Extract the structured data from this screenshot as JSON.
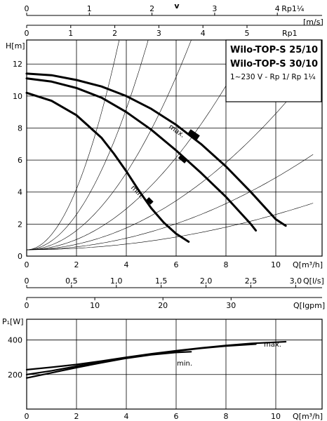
{
  "top_scales": {
    "v_title": "v",
    "rp114": {
      "label": "Rp1¼",
      "ticks": [
        "0",
        "1",
        "2",
        "3",
        "4"
      ],
      "values": [
        0,
        1,
        2,
        3,
        4
      ]
    },
    "rp1": {
      "label": "Rp1",
      "ticks": [
        "0",
        "1",
        "2",
        "3",
        "4",
        "5"
      ],
      "values": [
        0,
        1,
        2,
        3,
        4,
        5
      ]
    },
    "unit": "[m/s]"
  },
  "legend_box": {
    "line1": "Wilo-TOP-S 25/10",
    "line2": "Wilo-TOP-S 30/10",
    "line3": "1~230 V - Rp 1/ Rp 1¼"
  },
  "chart_data": [
    {
      "type": "line",
      "title": "",
      "xlabel": "Q[m³/h]",
      "ylabel": "H[m]",
      "xlim": [
        0,
        11.5
      ],
      "ylim": [
        0,
        13.5
      ],
      "x_ticks": [
        0,
        2,
        4,
        6,
        8,
        10
      ],
      "x_tick_labels": [
        "0",
        "2",
        "4",
        "6",
        "8",
        "10"
      ],
      "y_ticks": [
        0,
        2,
        4,
        6,
        8,
        10,
        12
      ],
      "y_tick_labels": [
        "0",
        "2",
        "4",
        "6",
        "8",
        "10",
        "12"
      ],
      "grid": true,
      "series": [
        {
          "name": "max.",
          "x": [
            0,
            1,
            2,
            3,
            4,
            5,
            6,
            7,
            8,
            9,
            10,
            10.4
          ],
          "y": [
            11.4,
            11.3,
            11.0,
            10.6,
            10.0,
            9.2,
            8.2,
            7.0,
            5.6,
            4.0,
            2.3,
            1.9
          ]
        },
        {
          "name": "",
          "x": [
            0,
            1,
            2,
            3,
            4,
            5,
            6,
            7,
            8,
            9,
            9.2
          ],
          "y": [
            11.1,
            10.9,
            10.5,
            9.9,
            9.0,
            7.9,
            6.6,
            5.2,
            3.7,
            2.0,
            1.6
          ]
        },
        {
          "name": "min.",
          "x": [
            0,
            1,
            2,
            3,
            3.5,
            4,
            4.5,
            5,
            5.5,
            6,
            6.5
          ],
          "y": [
            10.2,
            9.7,
            8.8,
            7.4,
            6.4,
            5.3,
            4.1,
            3.0,
            2.1,
            1.4,
            0.9
          ]
        }
      ],
      "middle_scales": {
        "ls": {
          "unit": "Q[l/s]",
          "ticks": [
            "0",
            "0,5",
            "1,0",
            "1,5",
            "2,0",
            "2,5",
            "3,0"
          ],
          "values": [
            0,
            0.5,
            1.0,
            1.5,
            2.0,
            2.5,
            3.0
          ]
        },
        "igpm": {
          "unit": "Q[Igpm]",
          "ticks": [
            "0",
            "10",
            "20",
            "30"
          ],
          "values": [
            0,
            10,
            20,
            30
          ]
        }
      }
    },
    {
      "type": "line",
      "title": "",
      "xlabel": "Q[m³/h]",
      "ylabel": "P₁[W]",
      "xlim": [
        0,
        11.5
      ],
      "ylim": [
        0,
        520
      ],
      "x_ticks": [
        0,
        2,
        4,
        6,
        8,
        10
      ],
      "x_tick_labels": [
        "0",
        "2",
        "4",
        "6",
        "8",
        "10"
      ],
      "y_ticks": [
        200,
        400
      ],
      "y_tick_labels": [
        "200",
        "400"
      ],
      "grid": true,
      "series": [
        {
          "name": "max.",
          "x": [
            0,
            1,
            2,
            3,
            4,
            5,
            6,
            7,
            8,
            9,
            10.4
          ],
          "y": [
            228,
            242,
            258,
            278,
            300,
            320,
            338,
            354,
            368,
            380,
            390
          ]
        },
        {
          "name": "",
          "x": [
            0,
            1,
            2,
            3,
            4,
            5,
            6,
            7,
            8,
            9.2
          ],
          "y": [
            200,
            222,
            248,
            272,
            298,
            318,
            336,
            352,
            365,
            376
          ]
        },
        {
          "name": "min.",
          "x": [
            0,
            1,
            2,
            3,
            4,
            5,
            6,
            6.6
          ],
          "y": [
            180,
            210,
            240,
            268,
            294,
            314,
            328,
            332
          ]
        }
      ]
    }
  ]
}
